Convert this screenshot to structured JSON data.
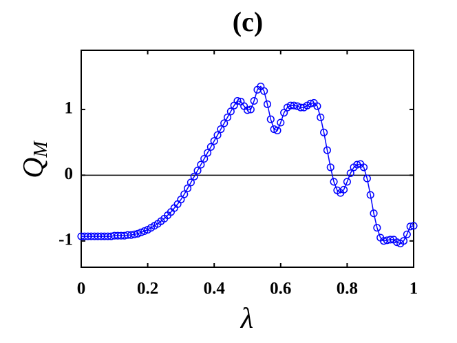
{
  "chart_data": {
    "type": "line",
    "title": "(c)",
    "xlabel": "λ",
    "ylabel": "Q",
    "ylabel_sub": "M",
    "x": [
      0,
      0.01,
      0.02,
      0.03,
      0.04,
      0.05,
      0.06,
      0.07,
      0.08,
      0.09,
      0.1,
      0.11,
      0.12,
      0.13,
      0.14,
      0.15,
      0.16,
      0.17,
      0.18,
      0.19,
      0.2,
      0.21,
      0.22,
      0.23,
      0.24,
      0.25,
      0.26,
      0.27,
      0.28,
      0.29,
      0.3,
      0.31,
      0.32,
      0.33,
      0.34,
      0.35,
      0.36,
      0.37,
      0.38,
      0.39,
      0.4,
      0.41,
      0.42,
      0.43,
      0.44,
      0.45,
      0.46,
      0.47,
      0.48,
      0.49,
      0.5,
      0.51,
      0.52,
      0.53,
      0.54,
      0.55,
      0.56,
      0.57,
      0.58,
      0.59,
      0.6,
      0.61,
      0.62,
      0.63,
      0.64,
      0.65,
      0.66,
      0.67,
      0.68,
      0.69,
      0.7,
      0.71,
      0.72,
      0.73,
      0.74,
      0.75,
      0.76,
      0.77,
      0.78,
      0.79,
      0.8,
      0.81,
      0.82,
      0.83,
      0.84,
      0.85,
      0.86,
      0.87,
      0.88,
      0.89,
      0.9,
      0.91,
      0.92,
      0.93,
      0.94,
      0.95,
      0.96,
      0.97,
      0.98,
      0.99,
      1
    ],
    "series": [
      {
        "name": "Q_M",
        "color": "#0000ff",
        "values": [
          -0.93,
          -0.93,
          -0.93,
          -0.93,
          -0.93,
          -0.93,
          -0.93,
          -0.93,
          -0.93,
          -0.93,
          -0.92,
          -0.92,
          -0.92,
          -0.92,
          -0.91,
          -0.91,
          -0.9,
          -0.89,
          -0.87,
          -0.85,
          -0.83,
          -0.8,
          -0.77,
          -0.74,
          -0.7,
          -0.66,
          -0.61,
          -0.56,
          -0.5,
          -0.44,
          -0.37,
          -0.29,
          -0.2,
          -0.11,
          -0.02,
          0.07,
          0.16,
          0.25,
          0.34,
          0.43,
          0.52,
          0.61,
          0.7,
          0.79,
          0.88,
          0.97,
          1.06,
          1.13,
          1.12,
          1.05,
          0.99,
          1.0,
          1.13,
          1.3,
          1.35,
          1.28,
          1.08,
          0.85,
          0.7,
          0.68,
          0.8,
          0.95,
          1.03,
          1.06,
          1.06,
          1.05,
          1.03,
          1.03,
          1.06,
          1.09,
          1.1,
          1.05,
          0.88,
          0.65,
          0.38,
          0.12,
          -0.1,
          -0.23,
          -0.27,
          -0.22,
          -0.1,
          0.03,
          0.12,
          0.16,
          0.17,
          0.12,
          -0.05,
          -0.3,
          -0.58,
          -0.8,
          -0.95,
          -1.0,
          -0.99,
          -0.98,
          -0.98,
          -1.02,
          -1.04,
          -1.0,
          -0.9,
          -0.78,
          -0.77
        ]
      }
    ],
    "xlim": [
      0,
      1
    ],
    "ylim": [
      -1.4,
      1.9
    ],
    "xticks": [
      0,
      0.2,
      0.4,
      0.6,
      0.8,
      1
    ],
    "yticks": [
      -1,
      0,
      1
    ],
    "hline": 0,
    "grid": false
  }
}
